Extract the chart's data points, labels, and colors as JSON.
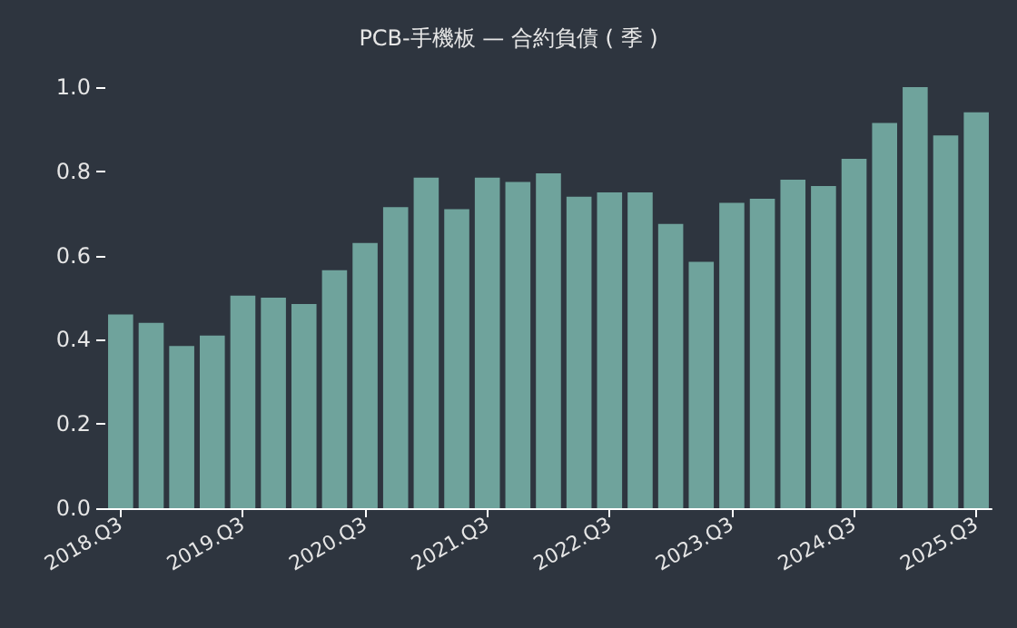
{
  "chart_data": {
    "type": "bar",
    "title": "PCB-手機板 — 合約負債 ( 季 )",
    "categories": [
      "2018.Q3",
      null,
      null,
      null,
      "2019.Q3",
      null,
      null,
      null,
      "2020.Q3",
      null,
      null,
      null,
      "2021.Q3",
      null,
      null,
      null,
      "2022.Q3",
      null,
      null,
      null,
      "2023.Q3",
      null,
      null,
      null,
      "2024.Q3",
      null,
      null,
      null,
      "2025.Q3"
    ],
    "values": [
      0.46,
      0.44,
      0.385,
      0.41,
      0.505,
      0.5,
      0.485,
      0.565,
      0.63,
      0.715,
      0.785,
      0.71,
      0.785,
      0.775,
      0.795,
      0.74,
      0.75,
      0.75,
      0.675,
      0.585,
      0.725,
      0.735,
      0.78,
      0.765,
      0.83,
      0.915,
      1.0,
      0.885,
      0.94
    ],
    "color": "#6fa39c",
    "ylim": [
      0,
      1
    ],
    "yticks": [
      {
        "value": 0,
        "label": "0.0"
      },
      0.2,
      0.4,
      0.6,
      0.8,
      {
        "value": 1,
        "label": "1.0"
      }
    ],
    "grid": false
  }
}
